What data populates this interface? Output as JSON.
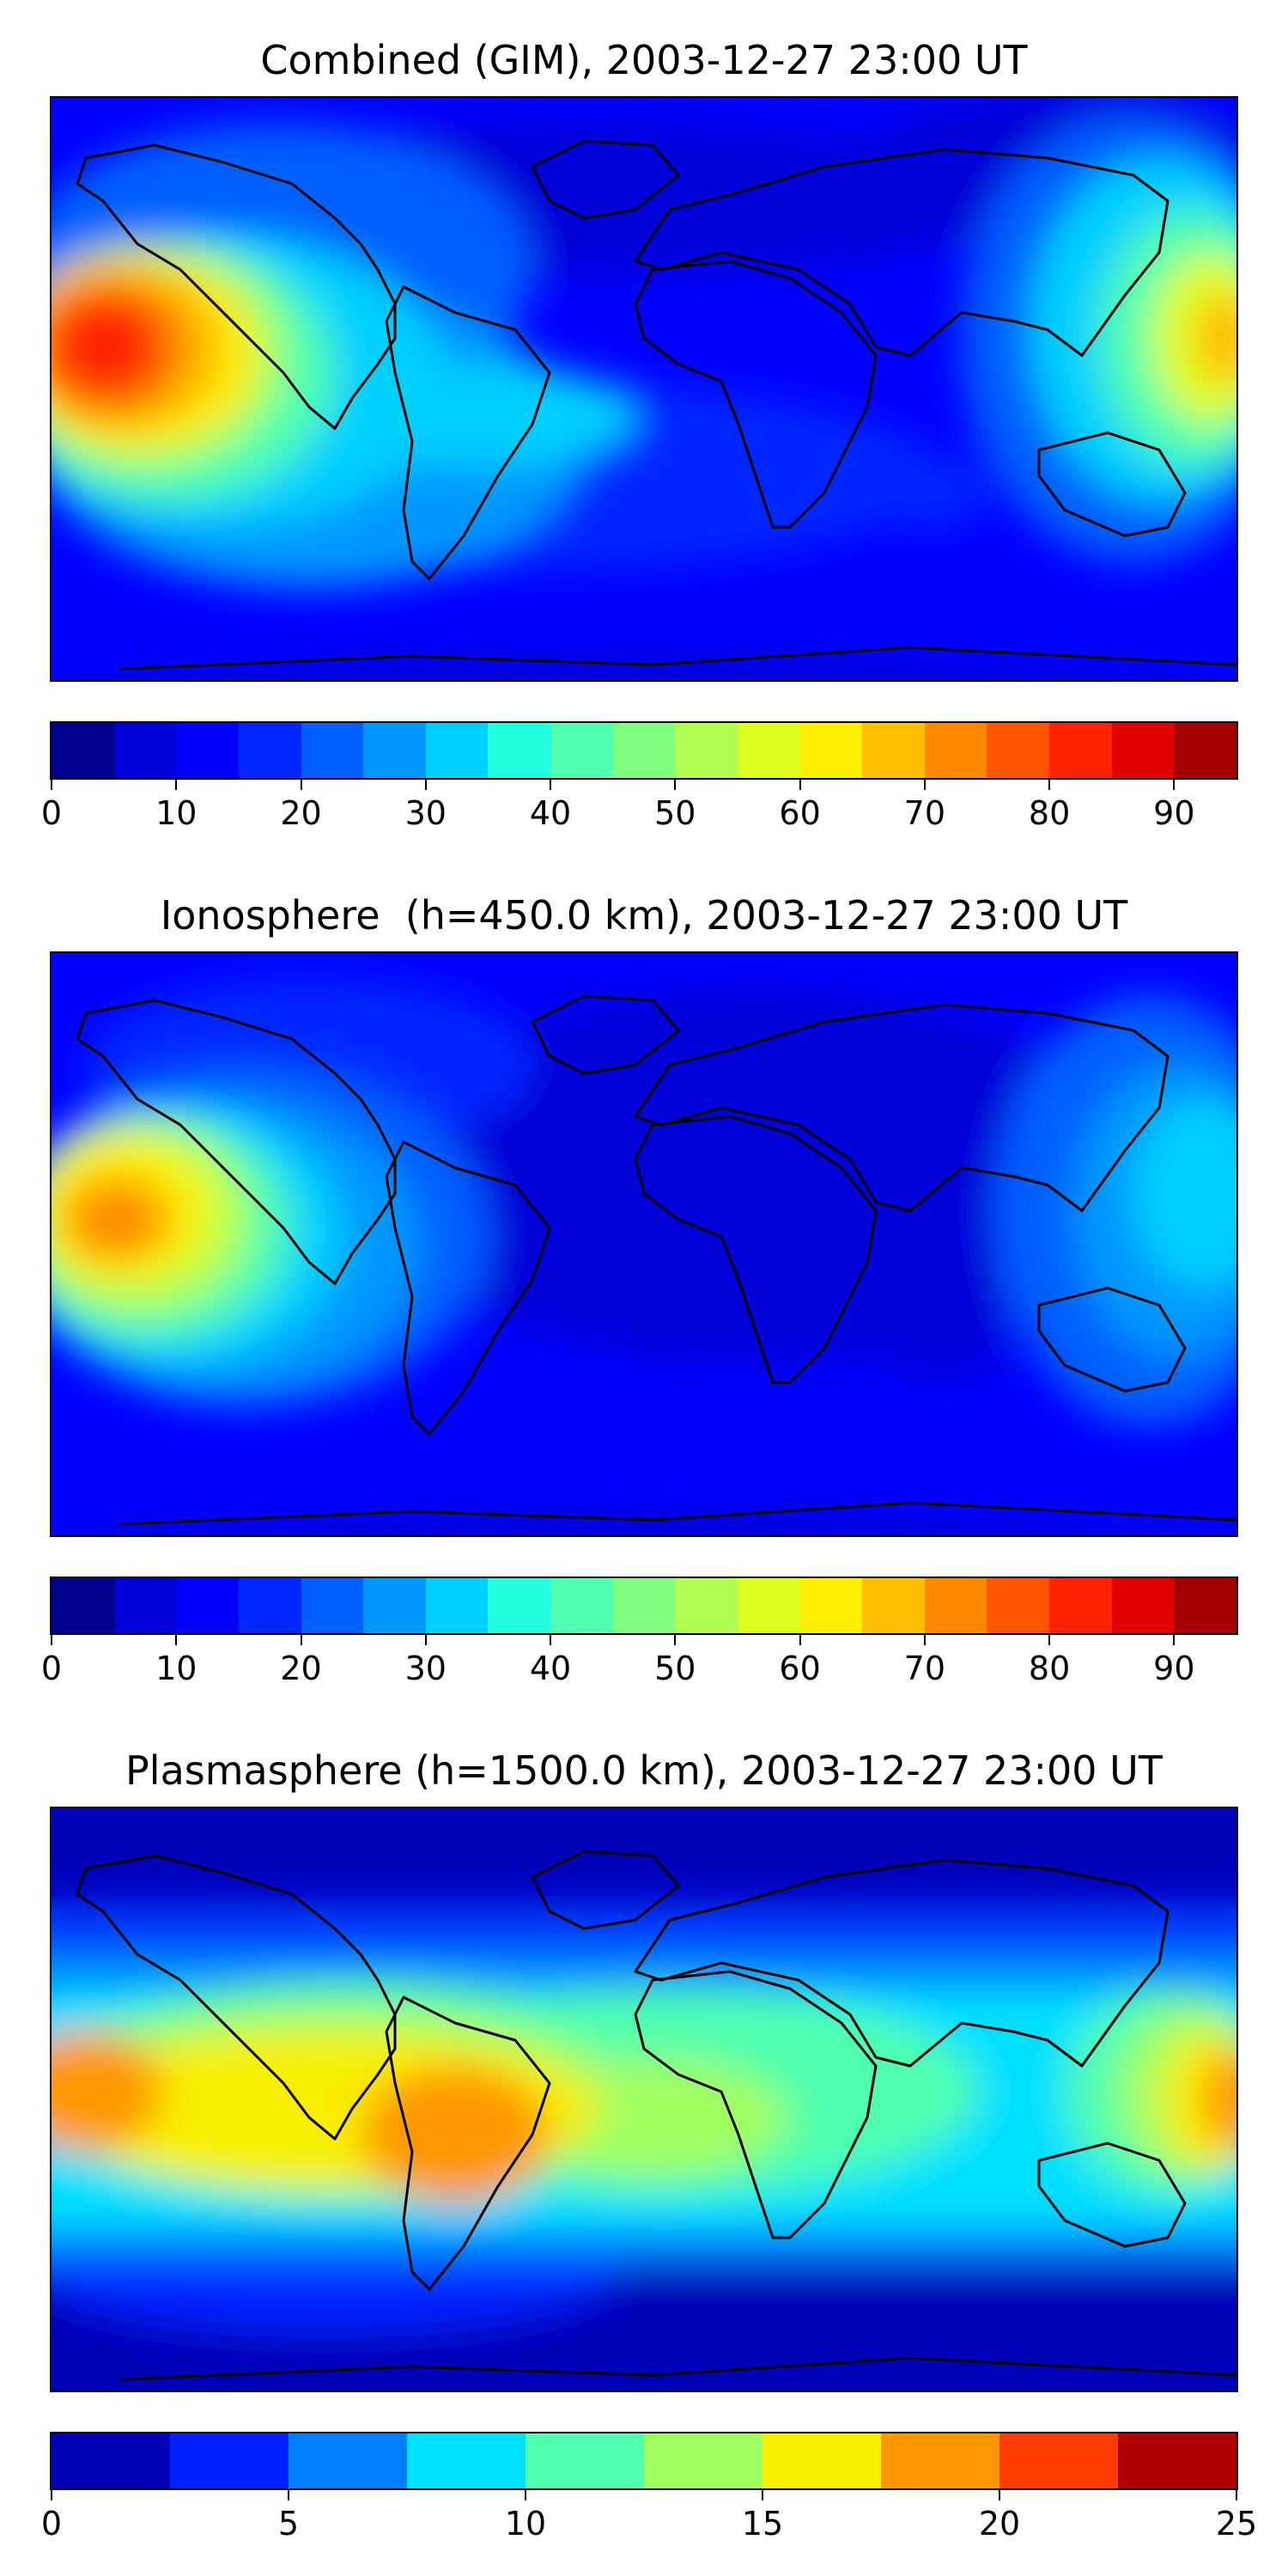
{
  "panels": [
    {
      "title": "Combined (GIM), 2003-12-27 23:00 UT",
      "colorbar": {
        "colors": [
          "#00008f",
          "#0000d8",
          "#0000ff",
          "#0028ff",
          "#0060ff",
          "#0098ff",
          "#00d0ff",
          "#20ffdf",
          "#50ffaf",
          "#80ff80",
          "#b0ff50",
          "#dfff20",
          "#ffef00",
          "#ffbf00",
          "#ff8800",
          "#ff5500",
          "#ff2200",
          "#e10000",
          "#a40000"
        ],
        "ticks": [
          "0",
          "10",
          "20",
          "30",
          "40",
          "50",
          "60",
          "70",
          "80",
          "90"
        ],
        "tick_values": [
          0,
          10,
          20,
          30,
          40,
          50,
          60,
          70,
          80,
          90
        ],
        "range": [
          0,
          95
        ]
      }
    },
    {
      "title": "Ionosphere  (h=450.0 km), 2003-12-27 23:00 UT",
      "colorbar": {
        "colors": [
          "#00008f",
          "#0000d8",
          "#0000ff",
          "#0028ff",
          "#0060ff",
          "#0098ff",
          "#00d0ff",
          "#20ffdf",
          "#50ffaf",
          "#80ff80",
          "#b0ff50",
          "#dfff20",
          "#ffef00",
          "#ffbf00",
          "#ff8800",
          "#ff5500",
          "#ff2200",
          "#e10000",
          "#a40000"
        ],
        "ticks": [
          "0",
          "10",
          "20",
          "30",
          "40",
          "50",
          "60",
          "70",
          "80",
          "90"
        ],
        "tick_values": [
          0,
          10,
          20,
          30,
          40,
          50,
          60,
          70,
          80,
          90
        ],
        "range": [
          0,
          95
        ]
      }
    },
    {
      "title": "Plasmasphere (h=1500.0 km), 2003-12-27 23:00 UT",
      "colorbar": {
        "colors": [
          "#0000b8",
          "#0020ff",
          "#0080ff",
          "#00e0ff",
          "#50ffaf",
          "#a0ff60",
          "#f8f000",
          "#ff9800",
          "#ff3c00",
          "#b00000"
        ],
        "ticks": [
          "0",
          "5",
          "10",
          "15",
          "20",
          "25"
        ],
        "tick_values": [
          0,
          5,
          10,
          15,
          20,
          25
        ],
        "range": [
          0,
          25
        ]
      }
    }
  ]
}
